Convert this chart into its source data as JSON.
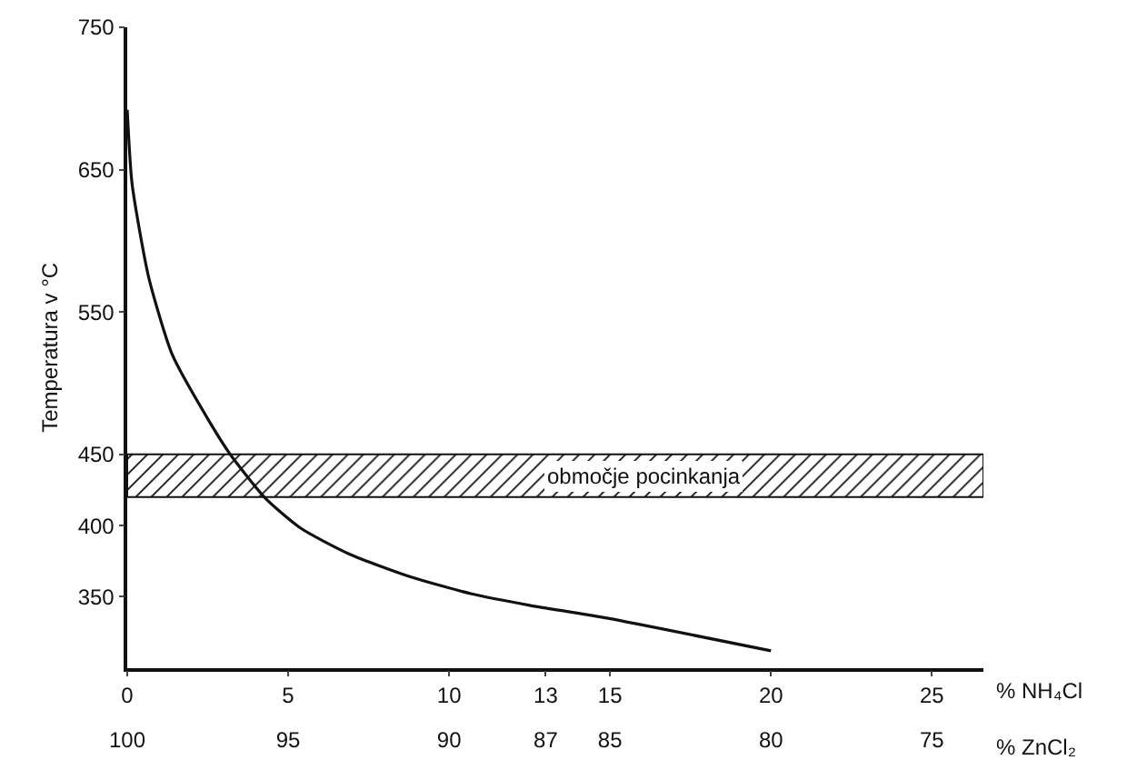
{
  "chart_data": {
    "type": "line",
    "xlabel": "% NH₄Cl",
    "x2label": "% ZnCl₂",
    "ylabel": "Temperatura v °C",
    "x": [
      0,
      0.15,
      0.67,
      1.4,
      2.5,
      3.2,
      4.3,
      5.4,
      6.9,
      8.8,
      10.7,
      12.5,
      14.9,
      20
    ],
    "series": [
      {
        "color": "#111111",
        "values": [
          692,
          640,
          574,
          520,
          475,
          450,
          419,
          398,
          380,
          364,
          352,
          344,
          335,
          312
        ]
      }
    ],
    "xlim": [
      0,
      26.6
    ],
    "xticks": [
      0,
      5,
      10,
      13,
      15,
      20,
      25
    ],
    "x2lim": [
      100,
      73.4
    ],
    "x2ticks": [
      100,
      95,
      90,
      87,
      85,
      80,
      75
    ],
    "ylim": [
      300,
      750
    ],
    "yticks": [
      350,
      400,
      450,
      550,
      650,
      750
    ],
    "bands": [
      {
        "axis": "y",
        "from": 420,
        "to": 450,
        "label": "območje pocinkanja",
        "color": "#111111"
      }
    ],
    "grid": false,
    "marker": "none",
    "line_style": "solid"
  }
}
